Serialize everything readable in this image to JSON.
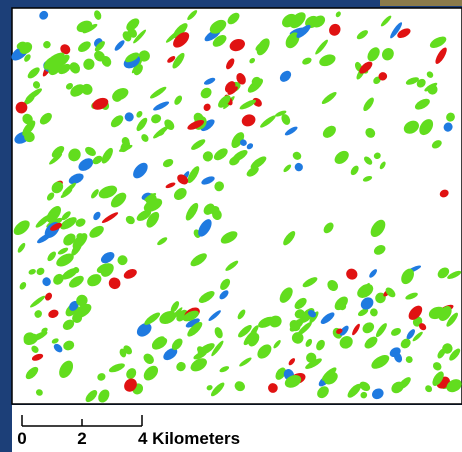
{
  "scale_bar": {
    "labels": [
      "0",
      "2",
      "4 Kilometers"
    ]
  }
}
